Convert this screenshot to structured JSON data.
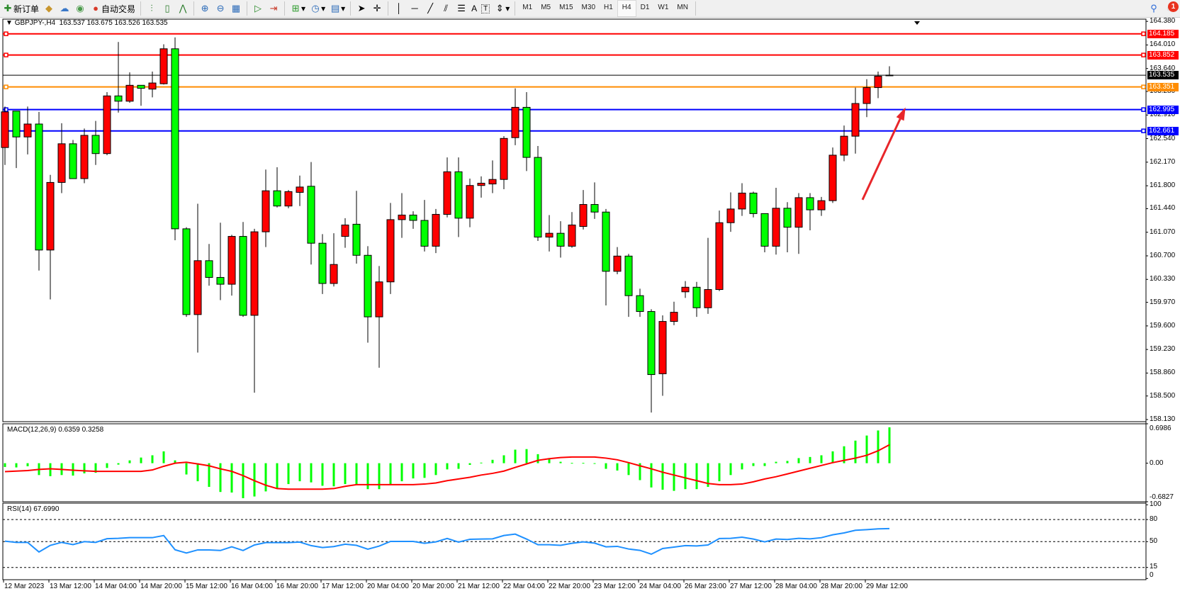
{
  "toolbar": {
    "new_order": "新订单",
    "auto_trading": "自动交易",
    "text_tool": "A",
    "text_label_tool": "T",
    "timeframes": [
      "M1",
      "M5",
      "M15",
      "M30",
      "H1",
      "H4",
      "D1",
      "W1",
      "MN"
    ],
    "active_timeframe": "H4",
    "notification_count": "1"
  },
  "chart": {
    "header": "GBPJPY-,H4  163.537 163.675 163.526 163.535",
    "colors": {
      "bull": "#ff0000",
      "bear": "#00ff00",
      "outline": "#000000",
      "arrow": "#e8262a"
    }
  },
  "chart_data": [
    {
      "type": "candlestick",
      "symbol": "GBPJPY-",
      "timeframe": "H4",
      "ylim": [
        158.13,
        164.38
      ],
      "y_ticks": [
        "164.380",
        "164.010",
        "163.640",
        "163.280",
        "162.910",
        "162.540",
        "162.170",
        "161.800",
        "161.440",
        "161.070",
        "160.700",
        "160.330",
        "159.970",
        "159.600",
        "159.230",
        "158.860",
        "158.500",
        "158.130"
      ],
      "ohlc": [
        [
          162.4,
          163.043,
          162.126,
          162.96
        ],
        [
          162.972,
          162.972,
          162.078,
          162.566
        ],
        [
          162.566,
          163.043,
          162.292,
          162.769
        ],
        [
          162.769,
          162.96,
          160.469,
          160.791
        ],
        [
          160.791,
          161.971,
          160.016,
          161.852
        ],
        [
          161.852,
          162.782,
          161.685,
          162.459
        ],
        [
          162.459,
          162.519,
          161.912,
          161.912
        ],
        [
          161.912,
          162.698,
          161.84,
          162.591
        ],
        [
          162.591,
          162.817,
          162.126,
          162.305
        ],
        [
          162.305,
          163.27,
          162.28,
          163.21
        ],
        [
          163.21,
          164.057,
          162.948,
          163.127
        ],
        [
          163.127,
          163.58,
          163.103,
          163.377
        ],
        [
          163.377,
          163.377,
          163.055,
          163.329
        ],
        [
          163.317,
          163.592,
          163.187,
          163.413
        ],
        [
          163.401,
          164.02,
          163.389,
          163.95
        ],
        [
          163.95,
          164.129,
          160.945,
          161.124
        ],
        [
          161.124,
          161.149,
          159.742,
          159.778
        ],
        [
          159.778,
          161.518,
          159.182,
          160.624
        ],
        [
          160.624,
          160.886,
          160.231,
          160.361
        ],
        [
          160.361,
          161.22,
          160.005,
          160.254
        ],
        [
          160.254,
          161.029,
          160.075,
          161.005
        ],
        [
          161.005,
          161.231,
          159.742,
          159.766
        ],
        [
          159.766,
          161.124,
          158.551,
          161.077
        ],
        [
          161.077,
          162.054,
          160.838,
          161.721
        ],
        [
          161.721,
          162.09,
          161.459,
          161.482
        ],
        [
          161.482,
          161.733,
          161.447,
          161.708
        ],
        [
          161.696,
          161.959,
          161.482,
          161.78
        ],
        [
          161.792,
          162.173,
          160.564,
          160.898
        ],
        [
          160.898,
          161.041,
          160.1,
          160.266
        ],
        [
          160.266,
          161.054,
          160.219,
          160.564
        ],
        [
          161.005,
          161.291,
          160.826,
          161.184
        ],
        [
          161.196,
          161.721,
          160.577,
          160.708
        ],
        [
          160.708,
          160.851,
          159.337,
          159.742
        ],
        [
          159.742,
          160.54,
          158.944,
          160.291
        ],
        [
          160.291,
          161.53,
          160.1,
          161.268
        ],
        [
          161.268,
          161.685,
          160.982,
          161.34
        ],
        [
          161.34,
          161.399,
          161.124,
          161.256
        ],
        [
          161.256,
          161.577,
          160.768,
          160.851
        ],
        [
          160.851,
          161.435,
          160.743,
          161.351
        ],
        [
          161.351,
          162.245,
          161.303,
          162.019
        ],
        [
          162.019,
          162.245,
          160.994,
          161.291
        ],
        [
          161.291,
          161.912,
          161.149,
          161.804
        ],
        [
          161.804,
          161.947,
          161.613,
          161.84
        ],
        [
          161.828,
          162.197,
          161.685,
          161.899
        ],
        [
          161.899,
          162.578,
          161.745,
          162.543
        ],
        [
          162.555,
          163.329,
          162.436,
          163.031
        ],
        [
          163.031,
          163.27,
          162.031,
          162.245
        ],
        [
          162.245,
          162.424,
          160.933,
          160.994
        ],
        [
          160.994,
          161.34,
          160.768,
          161.054
        ],
        [
          161.054,
          161.244,
          160.672,
          160.851
        ],
        [
          160.851,
          161.387,
          160.826,
          161.184
        ],
        [
          161.161,
          161.733,
          161.113,
          161.506
        ],
        [
          161.506,
          161.852,
          161.28,
          161.387
        ],
        [
          161.387,
          161.435,
          159.921,
          160.457
        ],
        [
          160.457,
          160.838,
          160.41,
          160.696
        ],
        [
          160.696,
          160.731,
          159.742,
          160.075
        ],
        [
          160.075,
          160.184,
          159.742,
          159.826
        ],
        [
          159.826,
          159.861,
          158.24,
          158.836
        ],
        [
          158.849,
          159.766,
          158.503,
          159.67
        ],
        [
          159.67,
          159.98,
          159.611,
          159.814
        ],
        [
          160.135,
          160.303,
          160.04,
          160.207
        ],
        [
          160.207,
          160.291,
          159.742,
          159.885
        ],
        [
          159.885,
          160.982,
          159.789,
          160.171
        ],
        [
          160.171,
          161.41,
          160.147,
          161.22
        ],
        [
          161.22,
          161.696,
          161.077,
          161.435
        ],
        [
          161.435,
          161.84,
          161.327,
          161.685
        ],
        [
          161.685,
          161.708,
          161.303,
          161.363
        ],
        [
          161.363,
          161.363,
          160.755,
          160.851
        ],
        [
          160.851,
          161.768,
          160.719,
          161.447
        ],
        [
          161.447,
          161.542,
          160.755,
          161.149
        ],
        [
          161.149,
          161.685,
          160.731,
          161.613
        ],
        [
          161.613,
          161.685,
          161.101,
          161.422
        ],
        [
          161.422,
          161.625,
          161.327,
          161.566
        ],
        [
          161.566,
          162.4,
          161.53,
          162.28
        ],
        [
          162.28,
          162.745,
          162.185,
          162.578
        ],
        [
          162.578,
          163.341,
          162.305,
          163.091
        ],
        [
          163.091,
          163.473,
          162.877,
          163.341
        ],
        [
          163.341,
          163.592,
          163.175,
          163.52
        ],
        [
          163.537,
          163.675,
          163.526,
          163.535
        ]
      ],
      "horizontal_levels": [
        {
          "price": "164.185",
          "color": "#ff0000"
        },
        {
          "price": "163.852",
          "color": "#ff0000"
        },
        {
          "price": "163.535",
          "color": "#000000"
        },
        {
          "price": "163.351",
          "color": "#ff8c00"
        },
        {
          "price": "162.995",
          "color": "#0000ff"
        },
        {
          "price": "162.661",
          "color": "#0000ff"
        }
      ],
      "annotation": {
        "type": "arrow",
        "direction": "up-right",
        "from_bar": 75,
        "to_bar": 80,
        "from_price": 161.58,
        "to_price": 162.99
      }
    },
    {
      "type": "bar+line",
      "label": "MACD(12,26,9) 0.6359 0.3258",
      "ylim": [
        -0.6827,
        0.6986
      ],
      "y_ticks": [
        "0.6986",
        "0.00",
        "-0.6827"
      ],
      "histogram": [
        -0.067,
        -0.075,
        -0.054,
        -0.21,
        -0.23,
        -0.21,
        -0.22,
        -0.18,
        -0.17,
        -0.084,
        -0.025,
        0.05,
        0.1,
        0.14,
        0.21,
        0.05,
        -0.2,
        -0.32,
        -0.42,
        -0.51,
        -0.52,
        -0.62,
        -0.59,
        -0.5,
        -0.45,
        -0.37,
        -0.32,
        -0.34,
        -0.4,
        -0.41,
        -0.37,
        -0.39,
        -0.46,
        -0.46,
        -0.37,
        -0.32,
        -0.27,
        -0.26,
        -0.21,
        -0.11,
        -0.1,
        -0.03,
        0.01,
        0.06,
        0.14,
        0.24,
        0.25,
        0.16,
        0.09,
        0.025,
        0.005,
        0.005,
        0.0,
        -0.1,
        -0.13,
        -0.21,
        -0.3,
        -0.43,
        -0.47,
        -0.49,
        -0.46,
        -0.46,
        -0.42,
        -0.32,
        -0.21,
        -0.11,
        -0.05,
        -0.05,
        0.025,
        0.04,
        0.09,
        0.11,
        0.14,
        0.21,
        0.3,
        0.4,
        0.49,
        0.58,
        0.6359
      ],
      "signal": [
        -0.15,
        -0.14,
        -0.13,
        -0.11,
        -0.1,
        -0.11,
        -0.125,
        -0.135,
        -0.145,
        -0.145,
        -0.145,
        -0.145,
        -0.145,
        -0.12,
        -0.055,
        0.0,
        0.017,
        -0.013,
        -0.046,
        -0.1,
        -0.145,
        -0.22,
        -0.31,
        -0.39,
        -0.45,
        -0.46,
        -0.46,
        -0.46,
        -0.46,
        -0.45,
        -0.41,
        -0.38,
        -0.38,
        -0.38,
        -0.38,
        -0.38,
        -0.38,
        -0.37,
        -0.35,
        -0.31,
        -0.28,
        -0.25,
        -0.21,
        -0.18,
        -0.14,
        -0.075,
        -0.013,
        0.05,
        0.08,
        0.1,
        0.11,
        0.11,
        0.11,
        0.09,
        0.06,
        0.01,
        -0.046,
        -0.1,
        -0.16,
        -0.21,
        -0.26,
        -0.31,
        -0.36,
        -0.38,
        -0.38,
        -0.37,
        -0.33,
        -0.28,
        -0.24,
        -0.19,
        -0.14,
        -0.09,
        -0.04,
        0.01,
        0.05,
        0.09,
        0.14,
        0.22,
        0.3258
      ],
      "colors": {
        "histogram": "#00ff00",
        "signal": "#ff0000"
      }
    },
    {
      "type": "line",
      "label": "RSI(14) 67.6990",
      "ylim": [
        0,
        100
      ],
      "y_ticks": [
        "100",
        "80",
        "50",
        "15",
        "0"
      ],
      "levels": [
        80,
        50,
        15
      ],
      "values": [
        50.6,
        49,
        49,
        36,
        45,
        49,
        46,
        50,
        49,
        54,
        54.5,
        55.4,
        55.4,
        55.4,
        58.3,
        39,
        34.6,
        38.8,
        38.8,
        38,
        43,
        38,
        45.5,
        48.7,
        48.7,
        48.7,
        49.4,
        44.6,
        42,
        43.3,
        46.5,
        45,
        39.8,
        44,
        50.3,
        50.3,
        50.3,
        47.8,
        49.7,
        54.3,
        49.4,
        53.2,
        53.5,
        53.8,
        58.3,
        60.2,
        53.5,
        45.8,
        45.8,
        45,
        47.8,
        49.7,
        48,
        43,
        43.6,
        40,
        38.2,
        33,
        40.7,
        42.6,
        44.6,
        44.2,
        45.5,
        54.2,
        54.5,
        56,
        53.5,
        49.7,
        53.5,
        52.9,
        54.5,
        53.8,
        55.4,
        59.3,
        61.8,
        65.4,
        66.3,
        67.3,
        67.699
      ],
      "color": "#1e90ff"
    }
  ],
  "time_axis": [
    {
      "label": "12 Mar 2023",
      "bar": 0
    },
    {
      "label": "13 Mar 12:00",
      "bar": 4
    },
    {
      "label": "14 Mar 04:00",
      "bar": 8
    },
    {
      "label": "14 Mar 20:00",
      "bar": 12
    },
    {
      "label": "15 Mar 12:00",
      "bar": 16
    },
    {
      "label": "16 Mar 04:00",
      "bar": 20
    },
    {
      "label": "16 Mar 20:00",
      "bar": 24
    },
    {
      "label": "17 Mar 12:00",
      "bar": 28
    },
    {
      "label": "20 Mar 04:00",
      "bar": 32
    },
    {
      "label": "20 Mar 20:00",
      "bar": 36
    },
    {
      "label": "21 Mar 12:00",
      "bar": 40
    },
    {
      "label": "22 Mar 04:00",
      "bar": 44
    },
    {
      "label": "22 Mar 20:00",
      "bar": 48
    },
    {
      "label": "23 Mar 12:00",
      "bar": 52
    },
    {
      "label": "24 Mar 04:00",
      "bar": 56
    },
    {
      "label": "26 Mar 23:00",
      "bar": 60
    },
    {
      "label": "27 Mar 12:00",
      "bar": 64
    },
    {
      "label": "28 Mar 04:00",
      "bar": 68
    },
    {
      "label": "28 Mar 20:00",
      "bar": 72
    },
    {
      "label": "29 Mar 12:00",
      "bar": 76
    }
  ]
}
